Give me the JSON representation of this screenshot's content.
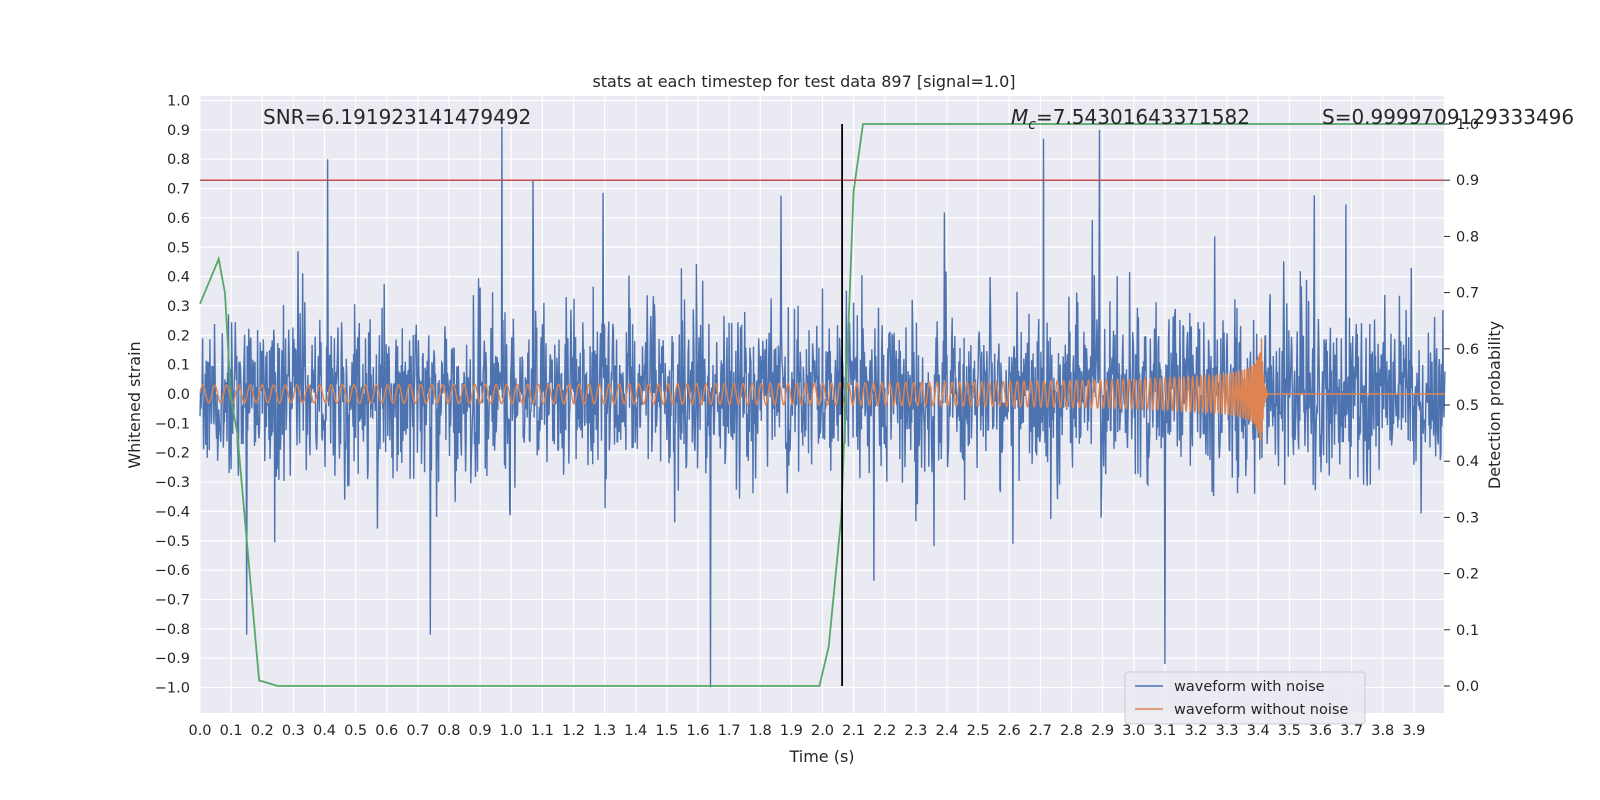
{
  "chart_data": {
    "type": "line",
    "title": "stats at each timestep for test data 897 [signal=1.0]",
    "xlabel": "Time (s)",
    "ylabel": "Whitened strain",
    "y2label": "Detection probability",
    "xlim": [
      0.0,
      4.0
    ],
    "ylim": [
      -1.09,
      1.01
    ],
    "y2lim": [
      -0.045,
      1.0
    ],
    "x_ticks": [
      "0.0",
      "0.1",
      "0.2",
      "0.3",
      "0.4",
      "0.5",
      "0.6",
      "0.7",
      "0.8",
      "0.9",
      "1.0",
      "1.1",
      "1.2",
      "1.3",
      "1.4",
      "1.5",
      "1.6",
      "1.7",
      "1.8",
      "1.9",
      "2.0",
      "2.1",
      "2.2",
      "2.3",
      "2.4",
      "2.5",
      "2.6",
      "2.7",
      "2.8",
      "2.9",
      "3.0",
      "3.1",
      "3.2",
      "3.3",
      "3.4",
      "3.5",
      "3.6",
      "3.7",
      "3.8",
      "3.9"
    ],
    "y_ticks": [
      "1.0",
      "0.9",
      "0.8",
      "0.7",
      "0.6",
      "0.5",
      "0.4",
      "0.3",
      "0.2",
      "0.1",
      "0.0",
      "−0.1",
      "−0.2",
      "−0.3",
      "−0.4",
      "−0.5",
      "−0.6",
      "−0.7",
      "−0.8",
      "−0.9",
      "−1.0"
    ],
    "y2_ticks": [
      "1.0",
      "0.9",
      "0.8",
      "0.7",
      "0.6",
      "0.5",
      "0.4",
      "0.3",
      "0.2",
      "0.1",
      "0.0"
    ],
    "annotations": {
      "snr": "SNR=6.191923141479492",
      "mc_symbol": "M",
      "mc_sub": "c",
      "mc_value": "=7.54301643371582",
      "s": "S=0.9999709129333496"
    },
    "threshold": {
      "y2": 0.9,
      "color": "#c44e52"
    },
    "event_time": 2.063,
    "series": [
      {
        "name": "waveform with noise",
        "color": "#4c72b0",
        "kind": "noise",
        "envelope_peaks": [
          {
            "x": 0.41,
            "y": 0.8
          },
          {
            "x": 0.97,
            "y": 0.91
          },
          {
            "x": 1.07,
            "y": 0.73
          },
          {
            "x": 1.64,
            "y": -1.0
          },
          {
            "x": 2.89,
            "y": 0.9
          },
          {
            "x": 3.1,
            "y": -0.92
          },
          {
            "x": 2.71,
            "y": 0.87
          },
          {
            "x": 0.74,
            "y": -0.82
          },
          {
            "x": 0.15,
            "y": -0.82
          }
        ]
      },
      {
        "name": "waveform without noise",
        "color": "#dd8452",
        "kind": "chirp",
        "amplitude_start": 0.03,
        "amplitude_peak": 0.21,
        "merger_time": 3.41
      },
      {
        "name": "detection probability",
        "color": "#55a868",
        "axis": "right",
        "x": [
          0.0,
          0.06,
          0.08,
          0.1,
          0.12,
          0.19,
          0.25,
          1.99,
          2.02,
          2.06,
          2.1,
          2.13,
          4.0
        ],
        "y": [
          0.68,
          0.76,
          0.7,
          0.51,
          0.45,
          0.01,
          0.0,
          0.0,
          0.07,
          0.3,
          0.88,
          1.0,
          1.0
        ]
      }
    ],
    "legend": {
      "placement": "lower-right",
      "entries": [
        "waveform with noise",
        "waveform without noise"
      ]
    },
    "grid": true,
    "background": "#eaeaf2"
  }
}
